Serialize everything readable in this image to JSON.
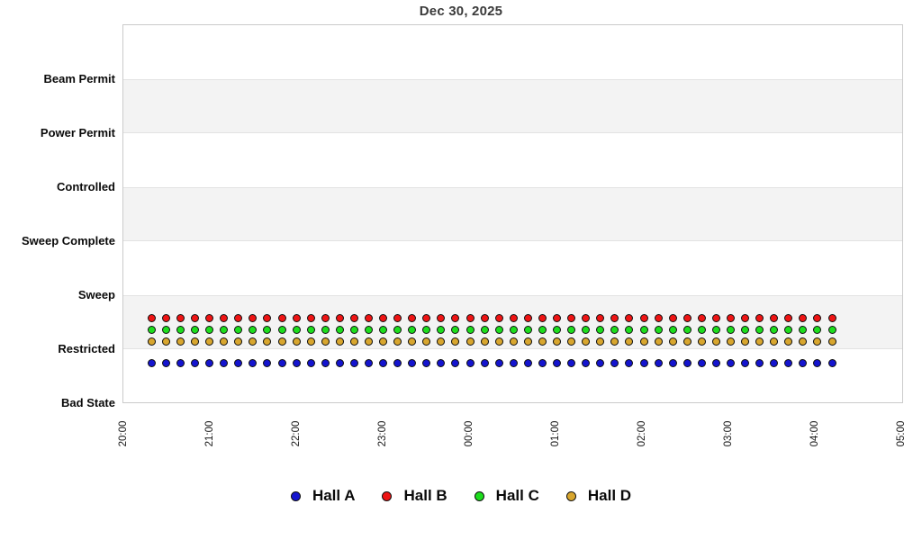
{
  "title": "Dec 30, 2025",
  "chart_data": {
    "type": "scatter",
    "title": "Dec 30, 2025",
    "xlabel": "",
    "ylabel": "",
    "grid": "horizontal-bands",
    "legend_position": "bottom",
    "y_categories": [
      "Beam Permit",
      "Power Permit",
      "Controlled",
      "Sweep Complete",
      "Sweep",
      "Restricted",
      "Bad State"
    ],
    "x_ticks": [
      "20:00",
      "21:00",
      "22:00",
      "23:00",
      "00:00",
      "01:00",
      "02:00",
      "03:00",
      "04:00",
      "05:00"
    ],
    "x_range": [
      "20:00",
      "05:00"
    ],
    "sample_interval_minutes": 10,
    "x_times": [
      "20:20",
      "20:30",
      "20:40",
      "20:50",
      "21:00",
      "21:10",
      "21:20",
      "21:30",
      "21:40",
      "21:50",
      "22:00",
      "22:10",
      "22:20",
      "22:30",
      "22:40",
      "22:50",
      "23:00",
      "23:10",
      "23:20",
      "23:30",
      "23:40",
      "23:50",
      "00:00",
      "00:10",
      "00:20",
      "00:30",
      "00:40",
      "00:50",
      "01:00",
      "01:10",
      "01:20",
      "01:30",
      "01:40",
      "01:50",
      "02:00",
      "02:10",
      "02:20",
      "02:30",
      "02:40",
      "02:50",
      "03:00",
      "03:10",
      "03:20",
      "03:30",
      "03:40",
      "03:50",
      "04:00",
      "04:10"
    ],
    "series": [
      {
        "name": "Hall A",
        "color": "#1414cf",
        "state_all_points": "Restricted"
      },
      {
        "name": "Hall B",
        "color": "#ee1414",
        "state_all_points": "Restricted"
      },
      {
        "name": "Hall C",
        "color": "#1ddd1d",
        "state_all_points": "Restricted"
      },
      {
        "name": "Hall D",
        "color": "#d8a62e",
        "state_all_points": "Restricted"
      }
    ]
  },
  "colors": {
    "band_gray": "#f3f3f3",
    "plot_border": "#cbcbcb",
    "title_text": "#3a3a3a"
  }
}
